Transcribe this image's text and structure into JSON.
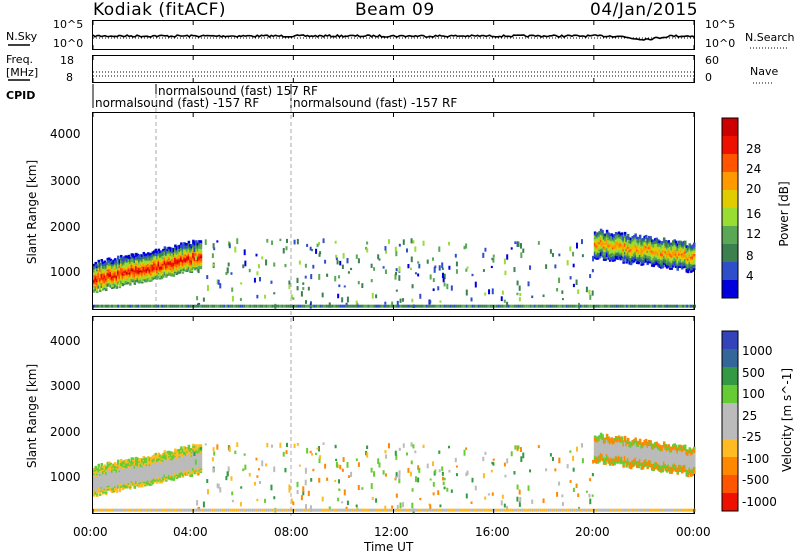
{
  "header": {
    "station": "Kodiak (fitACF)",
    "beam": "Beam 09",
    "date": "04/Jan/2015"
  },
  "top_panels": {
    "nsky_label": "N.Sky",
    "nsky_ticks": [
      "10^5",
      "10^0"
    ],
    "nsearch_label": "N.Search",
    "nsearch_ticks": [
      "10^5",
      "10^0"
    ],
    "freq_label_1": "Freq.",
    "freq_label_2": "[MHz]",
    "freq_ticks": [
      "18",
      "8"
    ],
    "nave_label": "Nave",
    "nave_ticks": [
      "60",
      "0"
    ],
    "cpid_label": "CPID",
    "cpid_entries": [
      "normalsound (fast) -157 RF",
      "normalsound (fast) 157 RF",
      "normalsound (fast) -157 RF"
    ]
  },
  "chart_data": [
    {
      "type": "heatmap",
      "ylabel": "Slant Range [km]",
      "yticks": [
        "4000",
        "3000",
        "2000",
        "1000"
      ],
      "ylim": [
        180,
        4600
      ],
      "colorbar_label": "Power [dB]",
      "colorbar_ticks": [
        "28",
        "24",
        "20",
        "16",
        "12",
        "8",
        "4"
      ],
      "colorbar_colors": [
        "#0000dd",
        "#2e4fc9",
        "#3c8050",
        "#5aa855",
        "#99dd33",
        "#e0cc00",
        "#ff9900",
        "#ff5500",
        "#ee1100",
        "#cc0000"
      ],
      "features": [
        {
          "t0": 0.0,
          "t1": 4.2,
          "r0": 800,
          "r1": 1400,
          "peak_db": 28
        },
        {
          "t0": 20.0,
          "t1": 24.0,
          "r0": 1000,
          "r1": 2000,
          "peak_db": 22
        }
      ]
    },
    {
      "type": "heatmap",
      "ylabel": "Slant Range [km]",
      "yticks": [
        "4000",
        "3000",
        "2000",
        "1000"
      ],
      "ylim": [
        180,
        4600
      ],
      "colorbar_label": "Velocity [m s^-1]",
      "colorbar_ticks": [
        "1000",
        "500",
        "100",
        "25",
        "-25",
        "-100",
        "-500",
        "-1000"
      ],
      "colorbar_colors": [
        "#3344bb",
        "#336699",
        "#339944",
        "#66cc33",
        "#bbbbbb",
        "#bbbbbb",
        "#ffbb22",
        "#ff8800",
        "#ff5500",
        "#ee1100"
      ]
    }
  ],
  "x_axis": {
    "ticks": [
      "00:00",
      "04:00",
      "08:00",
      "12:00",
      "16:00",
      "20:00",
      "00:00"
    ],
    "label": "Time UT"
  }
}
